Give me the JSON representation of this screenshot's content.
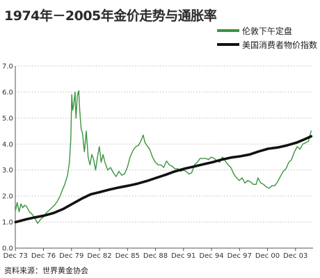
{
  "chart_data": {
    "type": "line",
    "title": "1974年－2005年金价走势与通胀率",
    "xlabel": "",
    "ylabel": "",
    "xlim": [
      1973.9,
      2005.8
    ],
    "ylim": [
      0,
      7
    ],
    "grid": true,
    "legend_position": "top-right",
    "x_tick_labels": [
      "Dec 73",
      "Dec 76",
      "Dec 79",
      "Dec 82",
      "Dec 85",
      "Dec 88",
      "Dec 91",
      "Dec 94",
      "Dec 97",
      "Dec 00",
      "Dec 03"
    ],
    "x_ticks": [
      1973.92,
      1976.92,
      1979.92,
      1982.92,
      1985.92,
      1988.92,
      1991.92,
      1994.92,
      1997.92,
      2000.92,
      2003.92
    ],
    "y_tick_labels": [
      "0.0",
      "1.0",
      "2.0",
      "3.0",
      "4.0",
      "5.0",
      "6.0",
      "7.0"
    ],
    "y_ticks": [
      0,
      1,
      2,
      3,
      4,
      5,
      6,
      7
    ],
    "series": [
      {
        "name": "伦敦下午定盘",
        "color": "#3a9440",
        "x": [
          1973.92,
          1974.1,
          1974.3,
          1974.5,
          1974.7,
          1974.9,
          1975.1,
          1975.4,
          1975.7,
          1976.0,
          1976.3,
          1976.6,
          1976.9,
          1977.2,
          1977.5,
          1977.8,
          1978.1,
          1978.4,
          1978.7,
          1978.9,
          1979.2,
          1979.5,
          1979.7,
          1979.85,
          1979.95,
          1980.05,
          1980.15,
          1980.3,
          1980.4,
          1980.55,
          1980.7,
          1980.8,
          1980.95,
          1981.1,
          1981.3,
          1981.5,
          1981.7,
          1981.9,
          1982.1,
          1982.3,
          1982.5,
          1982.7,
          1982.9,
          1983.1,
          1983.3,
          1983.5,
          1983.8,
          1984.1,
          1984.4,
          1984.7,
          1985.0,
          1985.3,
          1985.6,
          1985.9,
          1986.2,
          1986.5,
          1986.8,
          1987.1,
          1987.4,
          1987.6,
          1987.8,
          1988.0,
          1988.3,
          1988.6,
          1988.9,
          1989.2,
          1989.5,
          1989.8,
          1990.1,
          1990.4,
          1990.7,
          1991.0,
          1991.3,
          1991.6,
          1991.9,
          1992.2,
          1992.5,
          1992.8,
          1993.1,
          1993.4,
          1993.7,
          1994.0,
          1994.3,
          1994.6,
          1994.9,
          1995.2,
          1995.5,
          1995.8,
          1996.1,
          1996.4,
          1996.7,
          1997.0,
          1997.3,
          1997.6,
          1997.9,
          1998.2,
          1998.5,
          1998.8,
          1999.1,
          1999.4,
          1999.7,
          1999.9,
          2000.2,
          2000.5,
          2000.8,
          2001.1,
          2001.4,
          2001.7,
          2002.0,
          2002.3,
          2002.6,
          2002.9,
          2003.2,
          2003.5,
          2003.8,
          2004.1,
          2004.4,
          2004.7,
          2005.0,
          2005.3,
          2005.6
        ],
        "y": [
          1.45,
          1.75,
          1.4,
          1.7,
          1.55,
          1.65,
          1.6,
          1.4,
          1.3,
          1.15,
          0.95,
          1.1,
          1.2,
          1.35,
          1.45,
          1.55,
          1.65,
          1.8,
          2.0,
          2.2,
          2.45,
          2.8,
          3.3,
          4.2,
          5.9,
          5.3,
          5.5,
          6.0,
          5.0,
          5.85,
          6.05,
          5.3,
          4.6,
          4.4,
          3.7,
          4.5,
          3.5,
          3.2,
          3.6,
          3.4,
          3.0,
          3.5,
          3.9,
          3.3,
          3.6,
          3.3,
          3.0,
          3.1,
          2.9,
          2.75,
          2.95,
          2.8,
          2.85,
          3.1,
          3.5,
          3.75,
          3.9,
          3.95,
          4.15,
          4.35,
          4.05,
          3.95,
          3.8,
          3.5,
          3.3,
          3.2,
          3.2,
          3.1,
          3.35,
          3.2,
          3.15,
          3.05,
          3.05,
          2.95,
          3.0,
          2.95,
          2.85,
          2.9,
          3.2,
          3.3,
          3.45,
          3.45,
          3.45,
          3.4,
          3.5,
          3.45,
          3.35,
          3.3,
          3.5,
          3.35,
          3.2,
          3.1,
          2.85,
          2.7,
          2.6,
          2.7,
          2.5,
          2.6,
          2.55,
          2.45,
          2.45,
          2.7,
          2.5,
          2.45,
          2.35,
          2.3,
          2.4,
          2.4,
          2.55,
          2.75,
          2.95,
          3.05,
          3.3,
          3.4,
          3.7,
          3.9,
          3.8,
          4.0,
          4.05,
          4.1,
          4.5
        ]
      },
      {
        "name": "美国消费者物价指数",
        "color": "#111111",
        "x": [
          1973.92,
          1975.0,
          1976.0,
          1977.0,
          1978.0,
          1979.0,
          1980.0,
          1981.0,
          1982.0,
          1983.0,
          1984.0,
          1985.0,
          1986.0,
          1987.0,
          1988.0,
          1989.0,
          1990.0,
          1991.0,
          1992.0,
          1993.0,
          1994.0,
          1995.0,
          1996.0,
          1997.0,
          1998.0,
          1999.0,
          2000.0,
          2001.0,
          2002.0,
          2003.0,
          2004.0,
          2005.0,
          2005.6
        ],
        "y": [
          1.0,
          1.1,
          1.18,
          1.25,
          1.35,
          1.5,
          1.7,
          1.9,
          2.07,
          2.16,
          2.25,
          2.33,
          2.4,
          2.48,
          2.58,
          2.7,
          2.82,
          2.95,
          3.05,
          3.13,
          3.22,
          3.3,
          3.4,
          3.48,
          3.53,
          3.6,
          3.72,
          3.82,
          3.87,
          3.95,
          4.05,
          4.2,
          4.3
        ]
      }
    ]
  },
  "legend": {
    "items": [
      {
        "label": "伦敦下午定盘",
        "color": "#3a9440"
      },
      {
        "label": "美国消费者物价指数",
        "color": "#111111"
      }
    ]
  },
  "source": "资料来源：世界黄金协会"
}
